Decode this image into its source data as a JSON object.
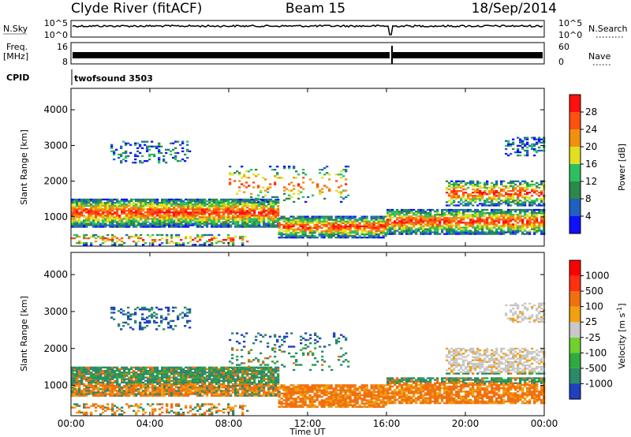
{
  "header": {
    "station": "Clyde River (fitACF)",
    "beam": "Beam 15",
    "date": "18/Sep/2014"
  },
  "top_panels": {
    "nsky_label": "N.Sky",
    "nsky_ticks": [
      "10^5",
      "10^0"
    ],
    "nsearch_label": "N.Search",
    "nsearch_ticks": [
      "10^5",
      "10^0"
    ],
    "freq_label": "Freq.",
    "freq_unit": "[MHz]",
    "freq_ticks": [
      "16",
      "8"
    ],
    "nave_label": "Nave",
    "nave_ticks": [
      "60",
      "0"
    ],
    "cpid_label": "CPID",
    "cpid_value": "twofsound 3503"
  },
  "chart_data": [
    {
      "type": "heatmap",
      "panel": "power",
      "ylabel": "Slant Range [km]",
      "xlabel": "",
      "y_ticks": [
        1000,
        2000,
        3000,
        4000
      ],
      "ylim": [
        180,
        4600
      ],
      "x_ticks": [
        "00:00",
        "04:00",
        "08:00",
        "12:00",
        "16:00",
        "20:00",
        "00:00"
      ],
      "xlim_hours": [
        0,
        24
      ],
      "colorbar": {
        "label": "Power [dB]",
        "ticks": [
          "28",
          "24",
          "20",
          "16",
          "12",
          "8",
          "4"
        ],
        "colors": [
          "#1010ff",
          "#2060c0",
          "#2a8a4a",
          "#2ec060",
          "#e0e020",
          "#f09010",
          "#ff5010",
          "#ff1010"
        ]
      }
    },
    {
      "type": "heatmap",
      "panel": "velocity",
      "ylabel": "Slant Range [km]",
      "xlabel": "Time UT",
      "y_ticks": [
        1000,
        2000,
        3000,
        4000
      ],
      "ylim": [
        180,
        4600
      ],
      "x_ticks": [
        "00:00",
        "04:00",
        "08:00",
        "12:00",
        "16:00",
        "20:00",
        "00:00"
      ],
      "xlim_hours": [
        0,
        24
      ],
      "colorbar": {
        "label": "Velocity [m s",
        "label_sup": "-1",
        "label_end": "]",
        "ticks": [
          "1000",
          "500",
          "100",
          "25",
          "-25",
          "-100",
          "-500",
          "-1000"
        ],
        "colors": [
          "#2040c0",
          "#2a8a6a",
          "#2eaa40",
          "#70d030",
          "#c8c8c8",
          "#f0a010",
          "#f07010",
          "#ff3010",
          "#ff0000"
        ]
      }
    }
  ]
}
